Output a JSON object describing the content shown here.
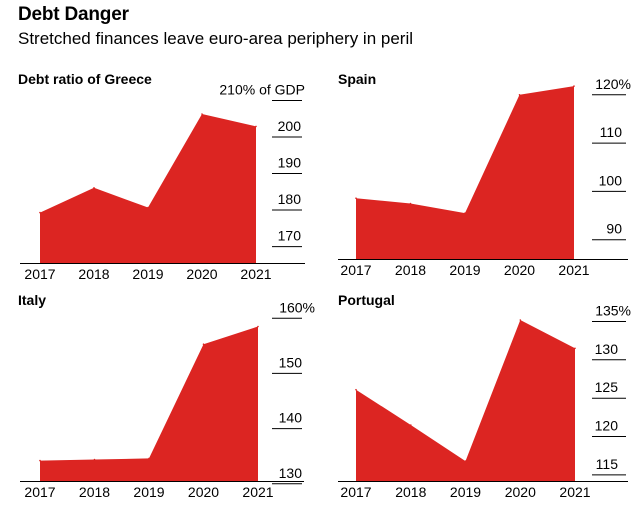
{
  "header": {
    "title": "Debt Danger",
    "subtitle": "Stretched finances leave euro-area periphery in peril"
  },
  "colors": {
    "area": "#dc2522",
    "axis": "#000000"
  },
  "chart_data": [
    {
      "type": "area",
      "title": "Debt ratio of Greece",
      "categories": [
        "2017",
        "2018",
        "2019",
        "2020",
        "2021"
      ],
      "values": [
        179.3,
        186.1,
        180.7,
        206.3,
        202.9
      ],
      "yticks": [
        {
          "value": 210,
          "label": "210% of GDP"
        },
        {
          "value": 200,
          "label": "200"
        },
        {
          "value": 190,
          "label": "190"
        },
        {
          "value": 180,
          "label": "180"
        },
        {
          "value": 170,
          "label": "170"
        }
      ],
      "ylim": [
        165.5,
        211.5
      ]
    },
    {
      "type": "area",
      "title": "Spain",
      "categories": [
        "2017",
        "2018",
        "2019",
        "2020",
        "2021"
      ],
      "values": [
        98.6,
        97.5,
        95.5,
        120.0,
        121.8
      ],
      "yticks": [
        {
          "value": 120,
          "label": "120%"
        },
        {
          "value": 110,
          "label": "110"
        },
        {
          "value": 100,
          "label": "100"
        },
        {
          "value": 90,
          "label": "90"
        }
      ],
      "ylim": [
        86,
        121
      ]
    },
    {
      "type": "area",
      "title": "Italy",
      "categories": [
        "2017",
        "2018",
        "2019",
        "2020",
        "2021"
      ],
      "values": [
        134.2,
        134.4,
        134.6,
        155.3,
        158.5
      ],
      "yticks": [
        {
          "value": 160,
          "label": "160%"
        },
        {
          "value": 150,
          "label": "150"
        },
        {
          "value": 140,
          "label": "140"
        },
        {
          "value": 130,
          "label": "130"
        }
      ],
      "ylim": [
        130.5,
        161.5
      ]
    },
    {
      "type": "area",
      "title": "Portugal",
      "categories": [
        "2017",
        "2018",
        "2019",
        "2020",
        "2021"
      ],
      "values": [
        126.1,
        121.5,
        116.8,
        135.2,
        131.5
      ],
      "yticks": [
        {
          "value": 135,
          "label": "135%"
        },
        {
          "value": 130,
          "label": "130"
        },
        {
          "value": 125,
          "label": "125"
        },
        {
          "value": 120,
          "label": "120"
        },
        {
          "value": 115,
          "label": "115"
        }
      ],
      "ylim": [
        114.2,
        136.5
      ]
    }
  ]
}
